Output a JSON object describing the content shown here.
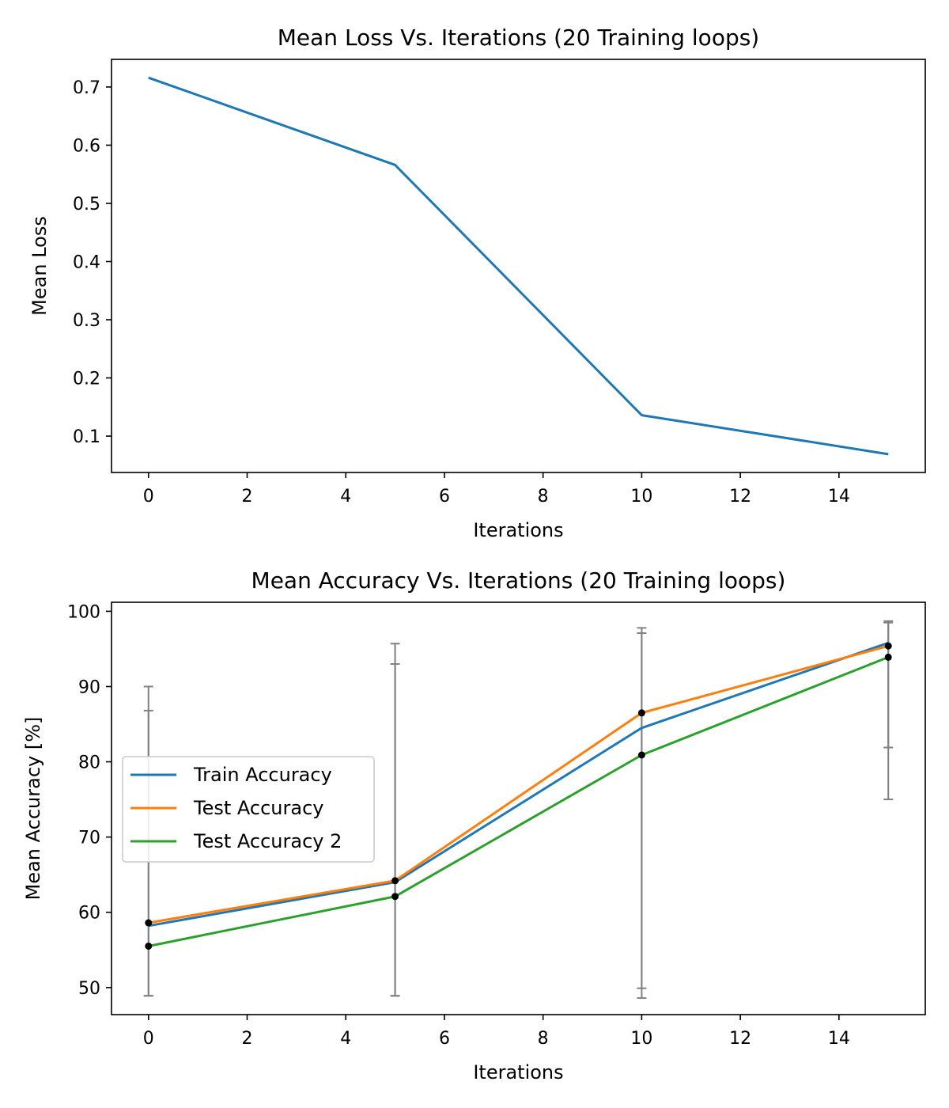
{
  "chart_data": [
    {
      "type": "line",
      "title": "Mean Loss Vs. Iterations (20 Training loops)",
      "xlabel": "Iterations",
      "ylabel": "Mean Loss",
      "x": [
        0,
        5,
        10,
        15
      ],
      "series": [
        {
          "values": [
            0.716,
            0.566,
            0.136,
            0.069
          ],
          "color": "#1f77b4"
        }
      ],
      "xlim": [
        -0.75,
        15.75
      ],
      "ylim": [
        0.0375,
        0.7475
      ],
      "xticks": [
        0,
        2,
        4,
        6,
        8,
        10,
        12,
        14
      ],
      "xtick_labels": [
        "0",
        "2",
        "4",
        "6",
        "8",
        "10",
        "12",
        "14"
      ],
      "yticks": [
        0.1,
        0.2,
        0.3,
        0.4,
        0.5,
        0.6,
        0.7
      ],
      "ytick_labels": [
        "0.1",
        "0.2",
        "0.3",
        "0.4",
        "0.5",
        "0.6",
        "0.7"
      ],
      "grid": false,
      "legend": "none"
    },
    {
      "type": "line",
      "title": "Mean Accuracy Vs. Iterations (20 Training loops)",
      "xlabel": "Iterations",
      "ylabel": "Mean Accuracy [%]",
      "x": [
        0,
        5,
        10,
        15
      ],
      "series": [
        {
          "name": "Train Accuracy",
          "values": [
            58.2,
            64.0,
            84.5,
            95.8
          ],
          "color": "#1f77b4"
        },
        {
          "name": "Test Accuracy",
          "values": [
            58.6,
            64.2,
            86.5,
            95.4
          ],
          "color": "#ff7f0e",
          "markers": true,
          "error_bars": [
            [
              48.9,
              86.8
            ],
            [
              48.9,
              93.0
            ],
            [
              48.6,
              97.8
            ],
            [
              75.0,
              98.5
            ]
          ]
        },
        {
          "name": "Test Accuracy 2",
          "values": [
            55.5,
            62.1,
            80.9,
            93.9
          ],
          "color": "#2ca02c",
          "markers": true,
          "error_bars": [
            [
              48.9,
              90.0
            ],
            [
              48.9,
              95.7
            ],
            [
              49.9,
              97.1
            ],
            [
              81.9,
              98.7
            ]
          ]
        }
      ],
      "error_bar_color": "#808080",
      "marker_color": "#000000",
      "xlim": [
        -0.75,
        15.75
      ],
      "ylim": [
        46.4,
        101.2
      ],
      "xticks": [
        0,
        2,
        4,
        6,
        8,
        10,
        12,
        14
      ],
      "xtick_labels": [
        "0",
        "2",
        "4",
        "6",
        "8",
        "10",
        "12",
        "14"
      ],
      "yticks": [
        50,
        60,
        70,
        80,
        90,
        100
      ],
      "ytick_labels": [
        "50",
        "60",
        "70",
        "80",
        "90",
        "100"
      ],
      "grid": false,
      "legend": "center-left"
    }
  ]
}
